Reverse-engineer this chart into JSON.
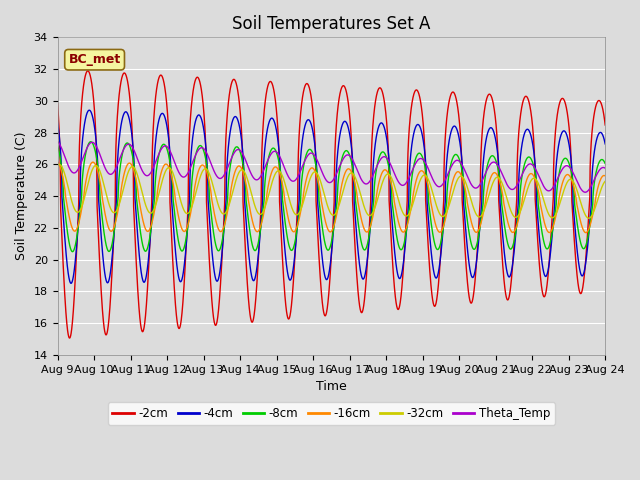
{
  "title": "Soil Temperatures Set A",
  "xlabel": "Time",
  "ylabel": "Soil Temperature (C)",
  "ylim": [
    14,
    34
  ],
  "xtick_labels": [
    "Aug 9",
    "Aug 10",
    "Aug 11",
    "Aug 12",
    "Aug 13",
    "Aug 14",
    "Aug 15",
    "Aug 16",
    "Aug 17",
    "Aug 18",
    "Aug 19",
    "Aug 20",
    "Aug 21",
    "Aug 22",
    "Aug 23",
    "Aug 24"
  ],
  "series_colors": [
    "#dd0000",
    "#0000cc",
    "#00cc00",
    "#ff8800",
    "#cccc00",
    "#aa00cc"
  ],
  "legend_labels": [
    "-2cm",
    "-4cm",
    "-8cm",
    "-16cm",
    "-32cm",
    "Theta_Temp"
  ],
  "annotation_text": "BC_met",
  "bg_color": "#dcdcdc",
  "plot_bg_color": "#dcdcdc",
  "grid_color": "#ffffff",
  "title_fontsize": 12
}
